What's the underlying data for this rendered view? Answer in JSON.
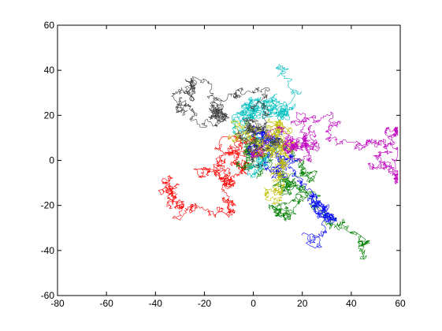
{
  "chart_data": {
    "type": "line",
    "title": "",
    "xlabel": "",
    "ylabel": "",
    "xlim": [
      -80,
      60
    ],
    "ylim": [
      -60,
      60
    ],
    "x_ticks": [
      -80,
      -60,
      -40,
      -20,
      0,
      20,
      40,
      60
    ],
    "y_ticks": [
      -60,
      -40,
      -20,
      0,
      20,
      40,
      60
    ],
    "x_tick_labels": [
      "-80",
      "-60",
      "-40",
      "-20",
      "0",
      "20",
      "40",
      "60"
    ],
    "y_tick_labels": [
      "-60",
      "-40",
      "-20",
      "0",
      "20",
      "40",
      "60"
    ],
    "grid": false,
    "legend": "none",
    "series": [
      {
        "color": "#ff0000",
        "steps": 1000,
        "step_size": 1.1,
        "seed": 11,
        "start": [
          0,
          0
        ]
      },
      {
        "color": "#008000",
        "steps": 1000,
        "step_size": 1.1,
        "seed": 23,
        "start": [
          0,
          0
        ]
      },
      {
        "color": "#0000ff",
        "steps": 1000,
        "step_size": 1.1,
        "seed": 37,
        "start": [
          0,
          0
        ]
      },
      {
        "color": "#00bfbf",
        "steps": 1000,
        "step_size": 1.1,
        "seed": 41,
        "start": [
          0,
          0
        ]
      },
      {
        "color": "#bfbf00",
        "steps": 1000,
        "step_size": 1.1,
        "seed": 53,
        "start": [
          0,
          0
        ]
      },
      {
        "color": "#bf00bf",
        "steps": 1000,
        "step_size": 1.1,
        "seed": 67,
        "start": [
          0,
          0
        ]
      },
      {
        "color": "#404040",
        "steps": 1000,
        "step_size": 1.1,
        "seed": 79,
        "start": [
          0,
          0
        ]
      }
    ]
  }
}
